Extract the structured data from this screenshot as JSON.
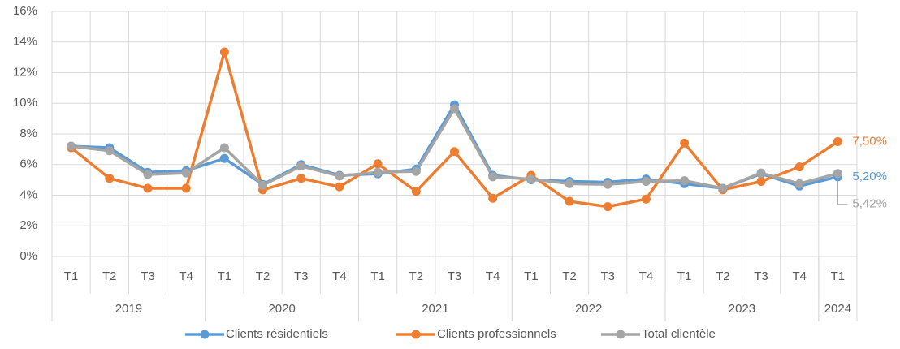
{
  "chart_data": {
    "type": "line",
    "groups": [
      {
        "label": "2019",
        "categories": [
          "T1",
          "T2",
          "T3",
          "T4"
        ]
      },
      {
        "label": "2020",
        "categories": [
          "T1",
          "T2",
          "T3",
          "T4"
        ]
      },
      {
        "label": "2021",
        "categories": [
          "T1",
          "T2",
          "T3",
          "T4"
        ]
      },
      {
        "label": "2022",
        "categories": [
          "T1",
          "T2",
          "T3",
          "T4"
        ]
      },
      {
        "label": "2023",
        "categories": [
          "T1",
          "T2",
          "T3",
          "T4"
        ]
      },
      {
        "label": "2024",
        "categories": [
          "T1"
        ]
      }
    ],
    "series": [
      {
        "name": "Clients résidentiels",
        "color": "#5b9bd5",
        "values": [
          7.2,
          7.1,
          5.5,
          5.6,
          6.4,
          4.7,
          6.0,
          5.3,
          5.4,
          5.7,
          9.9,
          5.3,
          5.0,
          4.9,
          4.85,
          5.05,
          4.75,
          4.45,
          5.4,
          4.6,
          5.2
        ],
        "value_labels": [
          null,
          null,
          null,
          null,
          null,
          null,
          null,
          null,
          null,
          null,
          null,
          null,
          null,
          null,
          null,
          null,
          null,
          null,
          null,
          null,
          "5,20%"
        ]
      },
      {
        "name": "Clients professionnels",
        "color": "#ed7d31",
        "values": [
          7.1,
          5.1,
          4.45,
          4.45,
          13.35,
          4.35,
          5.1,
          4.55,
          6.05,
          4.25,
          6.85,
          3.8,
          5.3,
          3.6,
          3.25,
          3.75,
          7.4,
          4.35,
          4.9,
          5.85,
          7.5
        ],
        "value_labels": [
          null,
          null,
          null,
          null,
          null,
          null,
          null,
          null,
          null,
          null,
          null,
          null,
          null,
          null,
          null,
          null,
          null,
          null,
          null,
          null,
          "7,50%"
        ]
      },
      {
        "name": "Total clientèle",
        "color": "#a5a5a5",
        "values": [
          7.2,
          6.9,
          5.35,
          5.45,
          7.1,
          4.65,
          5.9,
          5.25,
          5.5,
          5.55,
          9.65,
          5.2,
          5.05,
          4.75,
          4.7,
          4.9,
          4.95,
          4.45,
          5.45,
          4.75,
          5.42
        ],
        "value_labels": [
          null,
          null,
          null,
          null,
          null,
          null,
          null,
          null,
          null,
          null,
          null,
          null,
          null,
          null,
          null,
          null,
          null,
          null,
          null,
          null,
          "5,42%"
        ]
      }
    ],
    "ylim": [
      0,
      16
    ],
    "yticks": [
      {
        "value": 0,
        "label": "0%"
      },
      {
        "value": 2,
        "label": "2%"
      },
      {
        "value": 4,
        "label": "4%"
      },
      {
        "value": 6,
        "label": "6%"
      },
      {
        "value": 8,
        "label": "8%"
      },
      {
        "value": 10,
        "label": "10%"
      },
      {
        "value": 12,
        "label": "12%"
      },
      {
        "value": 14,
        "label": "14%"
      },
      {
        "value": 16,
        "label": "16%"
      }
    ],
    "grid": true,
    "legend": "bottom"
  }
}
